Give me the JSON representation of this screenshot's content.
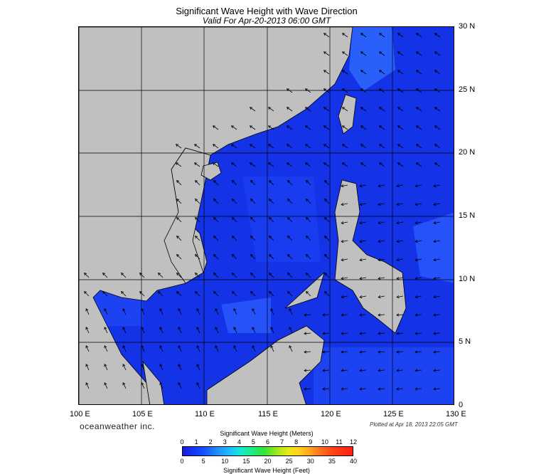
{
  "title": "Significant Wave Height with Wave Direction",
  "subtitle": "Valid For Apr-20-2013 06:00 GMT",
  "lat_labels": [
    "30 N",
    "25 N",
    "20 N",
    "15 N",
    "10 N",
    "5 N",
    "0"
  ],
  "lon_labels": [
    "100 E",
    "105 E",
    "110 E",
    "115 E",
    "120 E",
    "125 E",
    "130 E"
  ],
  "brand": "oceanweather inc.",
  "plotted": "Plotted at Apr 18, 2013 22:05 GMT",
  "colorbar": {
    "title_meters": "Significant Wave Height (Meters)",
    "title_feet": "Significant Wave Height (Feet)",
    "meters_ticks": [
      "0",
      "1",
      "2",
      "3",
      "4",
      "5",
      "6",
      "7",
      "8",
      "9",
      "10",
      "11",
      "12"
    ],
    "feet_ticks": [
      "0",
      "5",
      "10",
      "15",
      "20",
      "25",
      "30",
      "35",
      "40"
    ]
  },
  "colors": {
    "land": "#c0c0c0",
    "ocean_main": "#1432e6",
    "ocean_deep": "#0a0ab4",
    "ocean_light": "#2864ff",
    "grid": "#000000"
  }
}
